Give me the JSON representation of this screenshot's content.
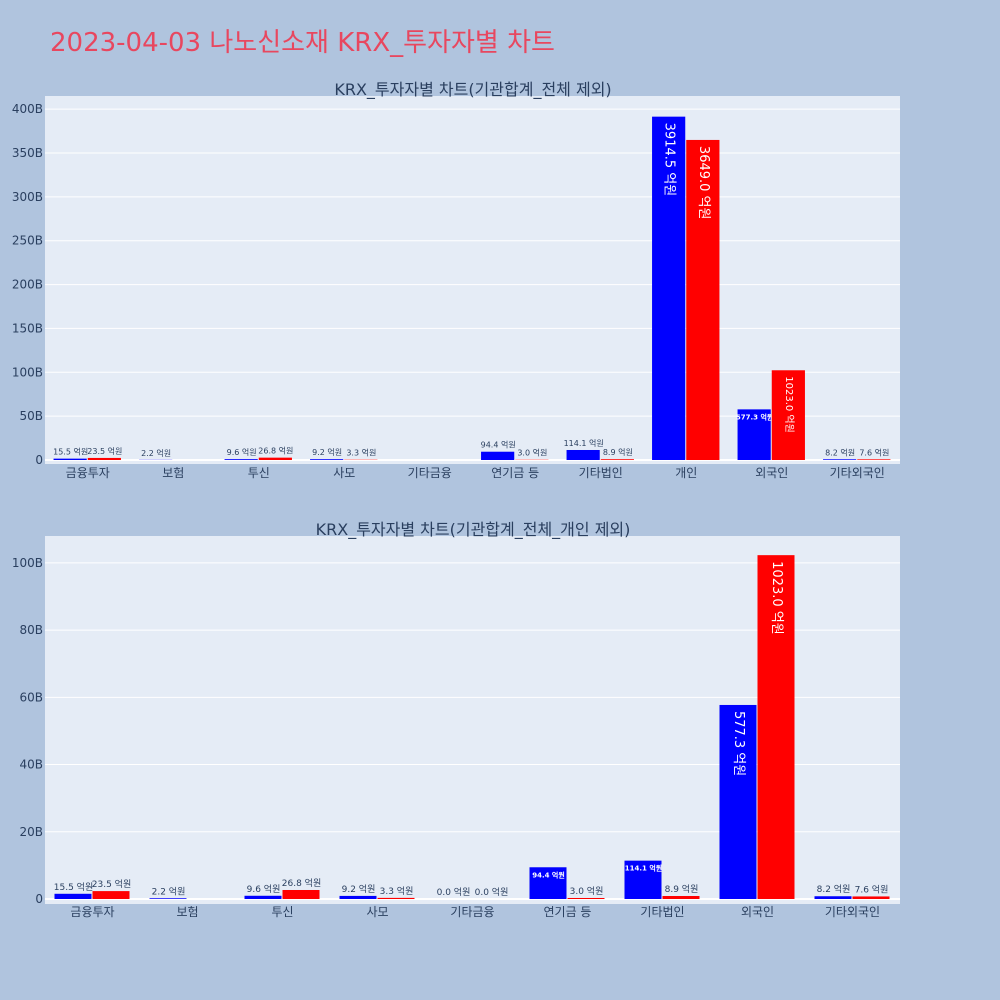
{
  "page": {
    "title": "2023-04-03 나노신소재 KRX_투자자별 차트"
  },
  "colors": {
    "background": "#b0c4de",
    "plot_bg": "#e5ecf6",
    "title": "#e8475f",
    "buy": "#0000ff",
    "sell": "#ff0000",
    "text": "#2a3f5f"
  },
  "chart_data": [
    {
      "type": "bar",
      "title": "KRX_투자자별 차트(기관합계_전체 제외)",
      "categories": [
        "금융투자",
        "보험",
        "투신",
        "사모",
        "기타금융",
        "연기금 등",
        "기타법인",
        "개인",
        "외국인",
        "기타외국인"
      ],
      "ylim": [
        0,
        415
      ],
      "yunit": "B",
      "yticks": [
        0,
        50,
        100,
        150,
        200,
        250,
        300,
        350,
        400
      ],
      "ytick_labels": [
        "0",
        "50B",
        "100B",
        "150B",
        "200B",
        "250B",
        "300B",
        "350B",
        "400B"
      ],
      "grid": true,
      "series": [
        {
          "values": [
            1.55,
            0.22,
            0.96,
            0.92,
            0,
            9.44,
            11.41,
            391.45,
            57.73,
            0.82
          ],
          "labels": [
            "15.5 억원",
            "2.2 억원",
            "9.6 억원",
            "9.2 억원",
            "",
            "94.4 억원",
            "114.1 억원",
            "3914.5 억원",
            "577.3 억원",
            "8.2 억원"
          ]
        },
        {
          "values": [
            2.35,
            0,
            2.68,
            0.33,
            0,
            0.3,
            0.89,
            364.9,
            102.3,
            0.76
          ],
          "labels": [
            "23.5 억원",
            "",
            "26.8 억원",
            "3.3 억원",
            "",
            "3.0 억원",
            "8.9 억원",
            "3649.0 억원",
            "1023.0 억원",
            "7.6 억원"
          ]
        }
      ]
    },
    {
      "type": "bar",
      "title": "KRX_투자자별 차트(기관합계_전체_개인 제외)",
      "categories": [
        "금융투자",
        "보험",
        "투신",
        "사모",
        "기타금융",
        "연기금 등",
        "기타법인",
        "외국인",
        "기타외국인"
      ],
      "ylim": [
        0,
        108
      ],
      "yunit": "B",
      "yticks": [
        0,
        20,
        40,
        60,
        80,
        100
      ],
      "ytick_labels": [
        "0",
        "20B",
        "40B",
        "60B",
        "80B",
        "100B"
      ],
      "grid": true,
      "series": [
        {
          "values": [
            1.55,
            0.22,
            0.96,
            0.92,
            0,
            9.44,
            11.41,
            57.73,
            0.82
          ],
          "labels": [
            "15.5 억원",
            "2.2 억원",
            "9.6 억원",
            "9.2 억원",
            "0.0 억원",
            "94.4 억원",
            "114.1 억원",
            "577.3 억원",
            "8.2 억원"
          ]
        },
        {
          "values": [
            2.35,
            0,
            2.68,
            0.33,
            0,
            0.3,
            0.89,
            102.3,
            0.76
          ],
          "labels": [
            "23.5 억원",
            "",
            "26.8 억원",
            "3.3 억원",
            "0.0 억원",
            "3.0 억원",
            "8.9 억원",
            "1023.0 억원",
            "7.6 억원"
          ]
        }
      ]
    }
  ]
}
